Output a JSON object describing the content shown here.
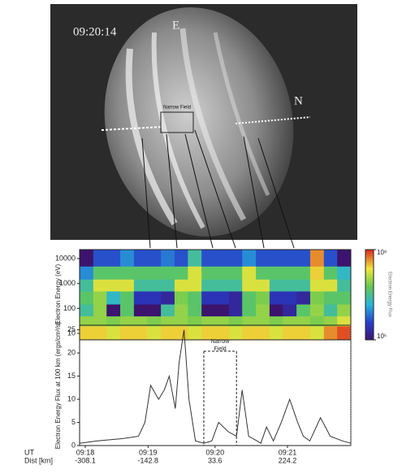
{
  "figure_image": {
    "timestamp": "09:20:14",
    "east_label": "E",
    "north_label": "N",
    "box_label": "Narrow Field"
  },
  "chart_data": [
    {
      "type": "heatmap",
      "y_label": "Electron Energy (eV)",
      "colorbar_label": "Electron Energy Flux",
      "log_y": true,
      "ylim": [
        5.5,
        23000
      ],
      "yticks": [
        10000,
        1000,
        100,
        10
      ],
      "xlim": [
        -323,
        391
      ],
      "x_bins": [
        -323,
        -287,
        -252,
        -216,
        -180,
        -145,
        -109,
        -73,
        -38,
        -2,
        34,
        70,
        105,
        141,
        177,
        212,
        248,
        284,
        320,
        355,
        391
      ],
      "y_bins": [
        5.5,
        20,
        50,
        150,
        500,
        1500,
        5000,
        23000
      ],
      "zlim": [
        100000,
        100000000
      ],
      "zticks": [
        {
          "value": 100000000,
          "label": "10⁸"
        },
        {
          "value": 100000,
          "label": "10⁵"
        }
      ],
      "z": [
        [
          30000000.0,
          30000000.0,
          20000000.0,
          30000000.0,
          30000000.0,
          20000000.0,
          30000000.0,
          30000000.0,
          20000000.0,
          30000000.0,
          30000000.0,
          20000000.0,
          30000000.0,
          30000000.0,
          20000000.0,
          30000000.0,
          30000000.0,
          20000000.0,
          50000000.0,
          80000000.0
        ],
        [
          10000000.0,
          10000000.0,
          8000000.0,
          10000000.0,
          10000000.0,
          8000000.0,
          10000000.0,
          10000000.0,
          8000000.0,
          10000000.0,
          10000000.0,
          8000000.0,
          10000000.0,
          10000000.0,
          8000000.0,
          10000000.0,
          10000000.0,
          8000000.0,
          10000000.0,
          20000000.0
        ],
        [
          3000000.0,
          10000000.0,
          100000.0,
          5000000.0,
          100000.0,
          100000.0,
          3000000.0,
          10000000.0,
          5000000.0,
          100000.0,
          100000.0,
          200000.0,
          5000000.0,
          10000000.0,
          100000.0,
          200000.0,
          5000000.0,
          10000000.0,
          3000000.0,
          10000000.0
        ],
        [
          5000000.0,
          10000000.0,
          2000000.0,
          5000000.0,
          300000.0,
          300000.0,
          200000.0,
          8000000.0,
          5000000.0,
          300000.0,
          300000.0,
          200000.0,
          5000000.0,
          8000000.0,
          300000.0,
          300000.0,
          200000.0,
          8000000.0,
          5000000.0,
          5000000.0
        ],
        [
          3000000.0,
          20000000.0,
          20000000.0,
          20000000.0,
          3000000.0,
          3000000.0,
          3000000.0,
          20000000.0,
          20000000.0,
          3000000.0,
          3000000.0,
          3000000.0,
          20000000.0,
          20000000.0,
          3000000.0,
          3000000.0,
          3000000.0,
          20000000.0,
          20000000.0,
          3000000.0
        ],
        [
          1000000.0,
          5000000.0,
          5000000.0,
          5000000.0,
          5000000.0,
          5000000.0,
          5000000.0,
          5000000.0,
          20000000.0,
          5000000.0,
          5000000.0,
          5000000.0,
          20000000.0,
          5000000.0,
          5000000.0,
          5000000.0,
          5000000.0,
          30000000.0,
          5000000.0,
          2000000.0
        ],
        [
          100000.0,
          500000.0,
          500000.0,
          1000000.0,
          500000.0,
          500000.0,
          800000.0,
          500000.0,
          3000000.0,
          500000.0,
          500000.0,
          500000.0,
          1000000.0,
          500000.0,
          500000.0,
          500000.0,
          500000.0,
          50000000.0,
          500000.0,
          100000.0
        ]
      ]
    },
    {
      "type": "line",
      "y_label": "Electron Energy Flux at 100 km (ergs/cm²/s)",
      "x_label": "UT",
      "x_label2": "Dist [km]",
      "xlim": [
        -323,
        391
      ],
      "ylim": [
        0,
        26
      ],
      "yticks": [
        0,
        5,
        10,
        15,
        20,
        25
      ],
      "xticks": [
        {
          "value": -308.1,
          "label": "09:18"
        },
        {
          "value": -142.8,
          "label": "09:19"
        },
        {
          "value": 33.6,
          "label": "09:20"
        },
        {
          "value": 224.2,
          "label": "09:21"
        }
      ],
      "annotation": {
        "text": "Narrow Field",
        "x_range": [
          4,
          90
        ]
      },
      "color": "#333333",
      "x": [
        -323,
        -276,
        -211,
        -168,
        -151,
        -136,
        -115,
        -100,
        -87,
        -71,
        -61,
        -48,
        -35,
        -18,
        4,
        25,
        43,
        68,
        90,
        105,
        122,
        144,
        154,
        169,
        187,
        208,
        230,
        251,
        266,
        283,
        311,
        337,
        369,
        391
      ],
      "values": [
        0.5,
        1,
        1.5,
        2,
        5,
        13,
        10,
        12,
        15,
        8,
        18,
        25,
        10,
        1,
        0.5,
        1,
        5,
        3,
        2,
        12,
        2,
        1,
        0.5,
        4,
        1,
        5,
        10,
        5,
        2,
        1,
        6,
        2,
        1,
        0.5
      ]
    }
  ]
}
